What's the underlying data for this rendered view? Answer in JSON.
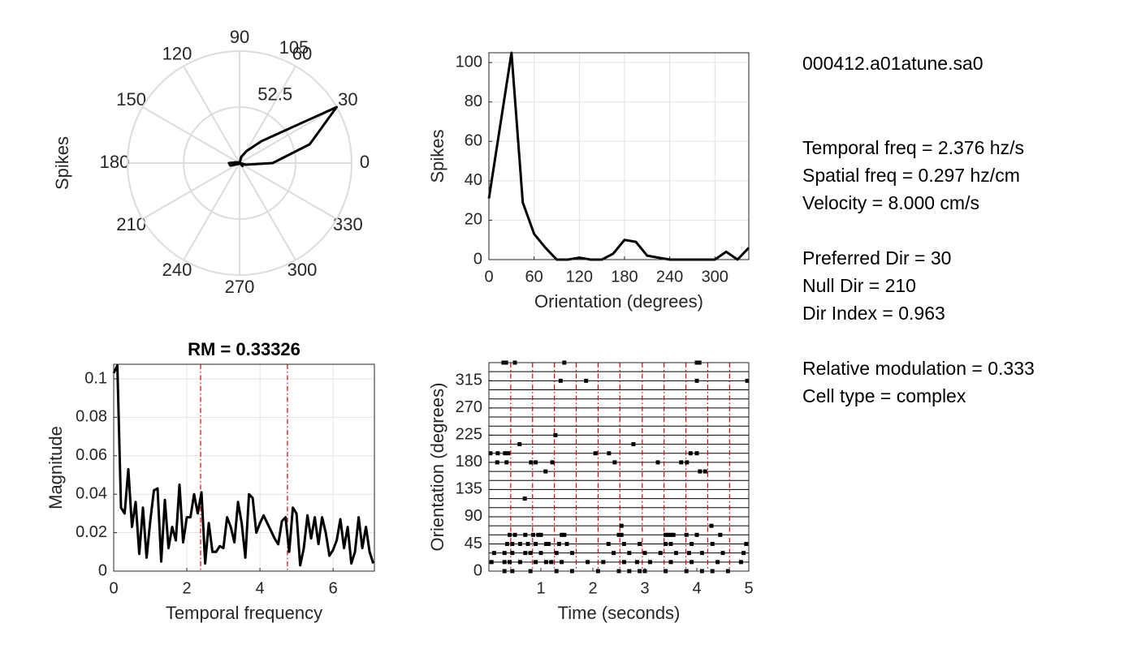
{
  "chart_data": [
    {
      "type": "polar",
      "ylabel": "Spikes",
      "theta": [
        0,
        15,
        30,
        45,
        60,
        75,
        90,
        105,
        120,
        135,
        150,
        165,
        180,
        195,
        210,
        225,
        240,
        255,
        270,
        285,
        300,
        315,
        330,
        345
      ],
      "values": [
        31,
        68,
        105,
        29,
        13,
        6,
        0,
        0,
        1,
        0,
        0,
        3,
        10,
        9,
        2,
        1,
        0,
        0,
        0,
        0,
        0,
        4,
        0,
        6
      ],
      "rlim": [
        0,
        105
      ],
      "rticks": [
        52.5,
        105
      ],
      "thetaticks": [
        0,
        30,
        60,
        90,
        120,
        150,
        180,
        210,
        240,
        270,
        300,
        330
      ],
      "color": "#000000"
    },
    {
      "type": "line",
      "xlabel": "Orientation (degrees)",
      "ylabel": "Spikes",
      "x": [
        0,
        15,
        30,
        45,
        60,
        75,
        90,
        105,
        120,
        135,
        150,
        165,
        180,
        195,
        210,
        225,
        240,
        255,
        270,
        285,
        300,
        315,
        330,
        345
      ],
      "values": [
        31,
        68,
        105,
        29,
        13,
        6,
        0,
        0,
        1,
        0,
        0,
        3,
        10,
        9,
        2,
        1,
        0,
        0,
        0,
        0,
        0,
        4,
        0,
        6
      ],
      "xlim": [
        0,
        345
      ],
      "xticks": [
        0,
        60,
        120,
        180,
        240,
        300
      ],
      "ylim": [
        0,
        105
      ],
      "yticks": [
        0,
        20,
        40,
        60,
        80,
        100
      ],
      "grid": true,
      "color": "#000000"
    },
    {
      "type": "line",
      "title": "RM = 0.33326",
      "xlabel": "Temporal frequency",
      "ylabel": "Magnitude",
      "x": [
        0,
        0.1,
        0.2,
        0.3,
        0.4,
        0.5,
        0.6,
        0.7,
        0.8,
        0.9,
        1.0,
        1.1,
        1.2,
        1.3,
        1.4,
        1.5,
        1.6,
        1.7,
        1.8,
        1.9,
        2.0,
        2.1,
        2.2,
        2.3,
        2.4,
        2.5,
        2.6,
        2.7,
        2.8,
        2.9,
        3.0,
        3.1,
        3.2,
        3.3,
        3.4,
        3.5,
        3.6,
        3.7,
        3.8,
        3.9,
        4.0,
        4.1,
        4.2,
        4.3,
        4.4,
        4.5,
        4.6,
        4.7,
        4.8,
        4.9,
        5.0,
        5.1,
        5.2,
        5.3,
        5.4,
        5.5,
        5.6,
        5.7,
        5.8,
        5.9,
        6.0,
        6.1,
        6.2,
        6.3,
        6.4,
        6.5,
        6.6,
        6.7,
        6.8,
        6.9,
        7.0,
        7.1
      ],
      "values": [
        0.103,
        0.107,
        0.033,
        0.03,
        0.053,
        0.023,
        0.036,
        0.009,
        0.033,
        0.007,
        0.026,
        0.042,
        0.043,
        0.005,
        0.037,
        0.012,
        0.023,
        0.016,
        0.045,
        0.015,
        0.028,
        0.028,
        0.04,
        0.03,
        0.041,
        0.004,
        0.025,
        0.01,
        0.01,
        0.013,
        0.012,
        0.028,
        0.023,
        0.015,
        0.036,
        0.025,
        0.007,
        0.04,
        0.038,
        0.02,
        0.025,
        0.029,
        0.025,
        0.021,
        0.017,
        0.014,
        0.026,
        0.028,
        0.01,
        0.033,
        0.03,
        0.003,
        0.012,
        0.029,
        0.017,
        0.028,
        0.014,
        0.028,
        0.02,
        0.008,
        0.011,
        0.016,
        0.027,
        0.012,
        0.023,
        0.004,
        0.01,
        0.028,
        0.012,
        0.023,
        0.01,
        0.004
      ],
      "xlim": [
        0,
        7.13
      ],
      "xticks": [
        0,
        2,
        4,
        6
      ],
      "ylim": [
        0,
        0.1076
      ],
      "yticks": [
        0,
        0.02,
        0.04,
        0.06,
        0.08,
        0.1
      ],
      "grid": true,
      "color": "#000000",
      "vlines": [
        2.376,
        4.752
      ],
      "vline_color": "#e00000"
    },
    {
      "type": "raster",
      "xlabel": "Time (seconds)",
      "ylabel": "Orientation (degrees)",
      "xlim": [
        0,
        5
      ],
      "xticks": [
        1,
        2,
        3,
        4,
        5
      ],
      "ylim": [
        0,
        345
      ],
      "yticks": [
        0,
        45,
        90,
        135,
        180,
        225,
        270,
        315
      ],
      "rows": [
        0,
        15,
        30,
        45,
        60,
        75,
        90,
        105,
        120,
        135,
        150,
        165,
        180,
        195,
        210,
        225,
        240,
        255,
        270,
        285,
        300,
        315,
        330,
        345
      ],
      "vlines": [
        0.42,
        0.84,
        1.26,
        1.68,
        2.1,
        2.52,
        2.95,
        3.37,
        3.79,
        4.21,
        4.63
      ],
      "vline_color": "#e00000",
      "color": "#000000",
      "spikes": [
        [
          0.28,
          345
        ],
        [
          0.33,
          345
        ],
        [
          0.5,
          345
        ],
        [
          1.45,
          345
        ],
        [
          4.0,
          345
        ],
        [
          4.05,
          345
        ],
        [
          1.38,
          315
        ],
        [
          1.87,
          315
        ],
        [
          4.0,
          315
        ],
        [
          4.97,
          315
        ],
        [
          1.28,
          225
        ],
        [
          0.59,
          210
        ],
        [
          2.78,
          210
        ],
        [
          0.03,
          195
        ],
        [
          0.17,
          195
        ],
        [
          0.31,
          195
        ],
        [
          0.37,
          195
        ],
        [
          2.05,
          195
        ],
        [
          2.31,
          195
        ],
        [
          3.88,
          195
        ],
        [
          4.0,
          195
        ],
        [
          0.16,
          180
        ],
        [
          0.34,
          180
        ],
        [
          0.81,
          180
        ],
        [
          0.9,
          180
        ],
        [
          1.22,
          180
        ],
        [
          2.42,
          180
        ],
        [
          3.25,
          180
        ],
        [
          3.7,
          180
        ],
        [
          3.81,
          180
        ],
        [
          1.09,
          165
        ],
        [
          4.06,
          165
        ],
        [
          4.16,
          165
        ],
        [
          0.69,
          120
        ],
        [
          2.55,
          75
        ],
        [
          4.28,
          75
        ],
        [
          0.4,
          60
        ],
        [
          0.5,
          60
        ],
        [
          0.7,
          60
        ],
        [
          0.85,
          60
        ],
        [
          0.95,
          60
        ],
        [
          1.0,
          60
        ],
        [
          1.4,
          60
        ],
        [
          1.45,
          60
        ],
        [
          2.5,
          60
        ],
        [
          2.55,
          60
        ],
        [
          3.4,
          60
        ],
        [
          3.45,
          60
        ],
        [
          3.5,
          60
        ],
        [
          3.55,
          60
        ],
        [
          3.8,
          60
        ],
        [
          4.0,
          60
        ],
        [
          4.45,
          60
        ],
        [
          0.35,
          45
        ],
        [
          0.45,
          45
        ],
        [
          0.6,
          45
        ],
        [
          0.75,
          45
        ],
        [
          0.9,
          45
        ],
        [
          1.1,
          45
        ],
        [
          1.15,
          45
        ],
        [
          1.35,
          45
        ],
        [
          1.5,
          45
        ],
        [
          2.3,
          45
        ],
        [
          2.6,
          45
        ],
        [
          2.9,
          45
        ],
        [
          3.4,
          45
        ],
        [
          3.5,
          45
        ],
        [
          3.9,
          45
        ],
        [
          4.3,
          45
        ],
        [
          4.95,
          45
        ],
        [
          0.1,
          30
        ],
        [
          0.3,
          30
        ],
        [
          0.45,
          30
        ],
        [
          0.7,
          30
        ],
        [
          0.8,
          30
        ],
        [
          1.0,
          30
        ],
        [
          1.3,
          30
        ],
        [
          1.6,
          30
        ],
        [
          2.4,
          30
        ],
        [
          2.7,
          30
        ],
        [
          3.0,
          30
        ],
        [
          3.3,
          30
        ],
        [
          3.6,
          30
        ],
        [
          3.85,
          30
        ],
        [
          4.1,
          30
        ],
        [
          4.5,
          30
        ],
        [
          4.9,
          30
        ],
        [
          0.05,
          15
        ],
        [
          0.3,
          15
        ],
        [
          0.4,
          15
        ],
        [
          0.6,
          15
        ],
        [
          0.9,
          15
        ],
        [
          1.1,
          15
        ],
        [
          1.2,
          15
        ],
        [
          1.4,
          15
        ],
        [
          1.9,
          15
        ],
        [
          2.2,
          15
        ],
        [
          2.6,
          15
        ],
        [
          2.85,
          15
        ],
        [
          3.1,
          15
        ],
        [
          3.5,
          15
        ],
        [
          3.9,
          15
        ],
        [
          4.4,
          15
        ],
        [
          4.85,
          15
        ],
        [
          0.3,
          0
        ],
        [
          0.45,
          0
        ],
        [
          0.8,
          0
        ],
        [
          1.3,
          0
        ],
        [
          1.6,
          0
        ],
        [
          2.1,
          0
        ],
        [
          2.5,
          0
        ],
        [
          2.7,
          0
        ],
        [
          2.9,
          0
        ],
        [
          3.0,
          0
        ],
        [
          3.4,
          0
        ],
        [
          3.8,
          0
        ],
        [
          4.1,
          0
        ],
        [
          4.3,
          0
        ],
        [
          4.6,
          0
        ]
      ]
    }
  ],
  "info": {
    "file": "000412.a01atune.sa0",
    "blocks": [
      [
        "Temporal freq = 2.376 hz/s",
        "Spatial freq = 0.297 hz/cm",
        "Velocity = 8.000 cm/s"
      ],
      [
        "Preferred Dir = 30",
        "Null Dir = 210",
        "Dir Index = 0.963"
      ],
      [
        "Relative modulation = 0.333",
        "Cell type = complex"
      ]
    ]
  }
}
